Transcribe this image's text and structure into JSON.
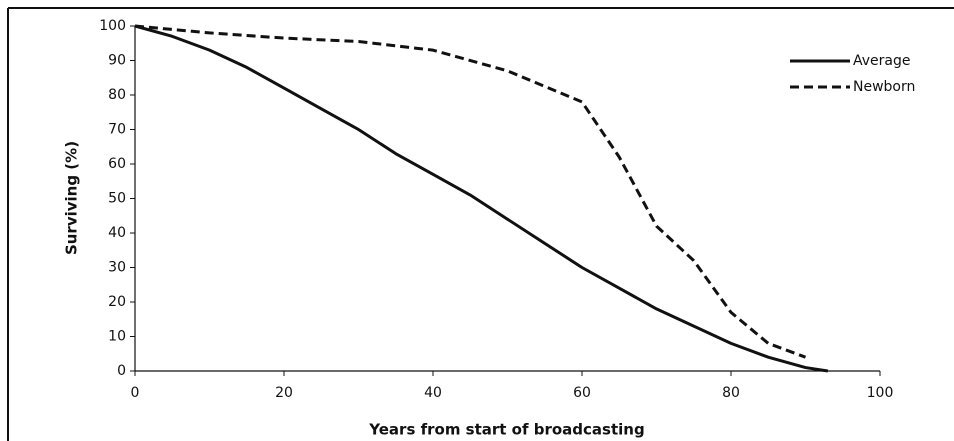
{
  "chart_data": {
    "type": "line",
    "xlabel": "Years from start of broadcasting",
    "ylabel": "Surviving (%)",
    "xlim": [
      0,
      100
    ],
    "xticks": [
      0,
      20,
      40,
      60,
      80,
      100
    ],
    "ylim": [
      0,
      100
    ],
    "yticks": [
      0,
      10,
      20,
      30,
      40,
      50,
      60,
      70,
      80,
      90,
      100
    ],
    "legend": "upper right",
    "series": [
      {
        "name": "Average",
        "color": "#111111",
        "style": "solid",
        "x": [
          0,
          5,
          10,
          15,
          20,
          25,
          30,
          35,
          40,
          45,
          50,
          55,
          60,
          65,
          70,
          75,
          80,
          85,
          90,
          93
        ],
        "values": [
          100,
          97,
          93,
          88,
          82,
          76,
          70,
          63,
          57,
          51,
          44,
          37,
          30,
          24,
          18,
          13,
          8,
          4,
          1,
          0
        ]
      },
      {
        "name": "Newborn",
        "color": "#111111",
        "style": "dashed",
        "x": [
          0,
          10,
          20,
          30,
          40,
          50,
          60,
          65,
          70,
          75,
          80,
          85,
          90
        ],
        "values": [
          100,
          98,
          96.5,
          95.5,
          93,
          87,
          78,
          62,
          42,
          32,
          17,
          8,
          4
        ]
      }
    ]
  }
}
